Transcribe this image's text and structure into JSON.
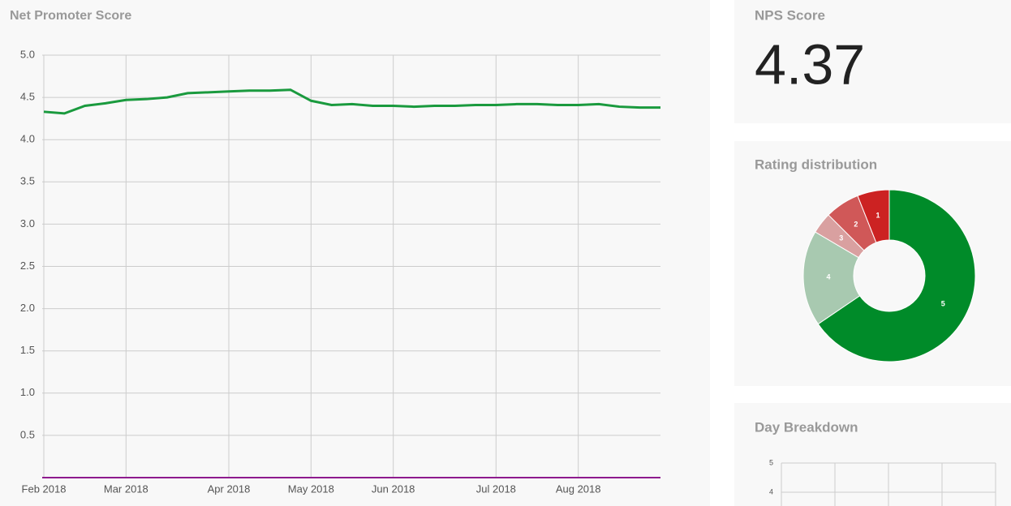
{
  "nps_card": {
    "title": "NPS Score",
    "value": 4.37
  },
  "chart_data": [
    {
      "type": "line",
      "title": "Net Promoter Score",
      "color": "#1a9a3e",
      "categories": [
        "Feb 2018",
        null,
        null,
        null,
        "Mar 2018",
        null,
        null,
        null,
        null,
        "Apr 2018",
        null,
        null,
        null,
        "May 2018",
        null,
        null,
        null,
        "Jun 2018",
        null,
        null,
        null,
        null,
        "Jul 2018",
        null,
        null,
        null,
        "Aug 2018",
        null,
        null,
        null,
        null
      ],
      "values": [
        4.33,
        4.31,
        4.4,
        4.43,
        4.47,
        4.48,
        4.5,
        4.55,
        4.56,
        4.57,
        4.58,
        4.58,
        4.59,
        4.46,
        4.41,
        4.42,
        4.4,
        4.4,
        4.39,
        4.4,
        4.4,
        4.41,
        4.41,
        4.42,
        4.42,
        4.41,
        4.41,
        4.42,
        4.39,
        4.38,
        4.38
      ],
      "ylim": [
        0,
        5
      ],
      "yticks": [
        0.5,
        {
          "value": 1,
          "label": "1.0"
        },
        1.5,
        {
          "value": 2,
          "label": "2.0"
        },
        2.5,
        {
          "value": 3,
          "label": "3.0"
        },
        3.5,
        {
          "value": 4,
          "label": "4.0"
        },
        4.5,
        {
          "value": 5,
          "label": "5.0"
        }
      ],
      "grid": true
    },
    {
      "type": "pie",
      "title": "Rating distribution",
      "hole": true,
      "categories": [
        "5",
        "4",
        "3",
        "2",
        "1"
      ],
      "values": [
        65.5,
        18,
        4,
        6.5,
        6
      ],
      "colors": [
        "#008b29",
        "#a8c9b0",
        "#d9a0a0",
        "#d05858",
        "#cc2222"
      ]
    },
    {
      "type": "bar",
      "title": "Day Breakdown",
      "ylim": [
        0,
        5
      ],
      "yticks": [
        4,
        5
      ],
      "grid": true
    }
  ]
}
